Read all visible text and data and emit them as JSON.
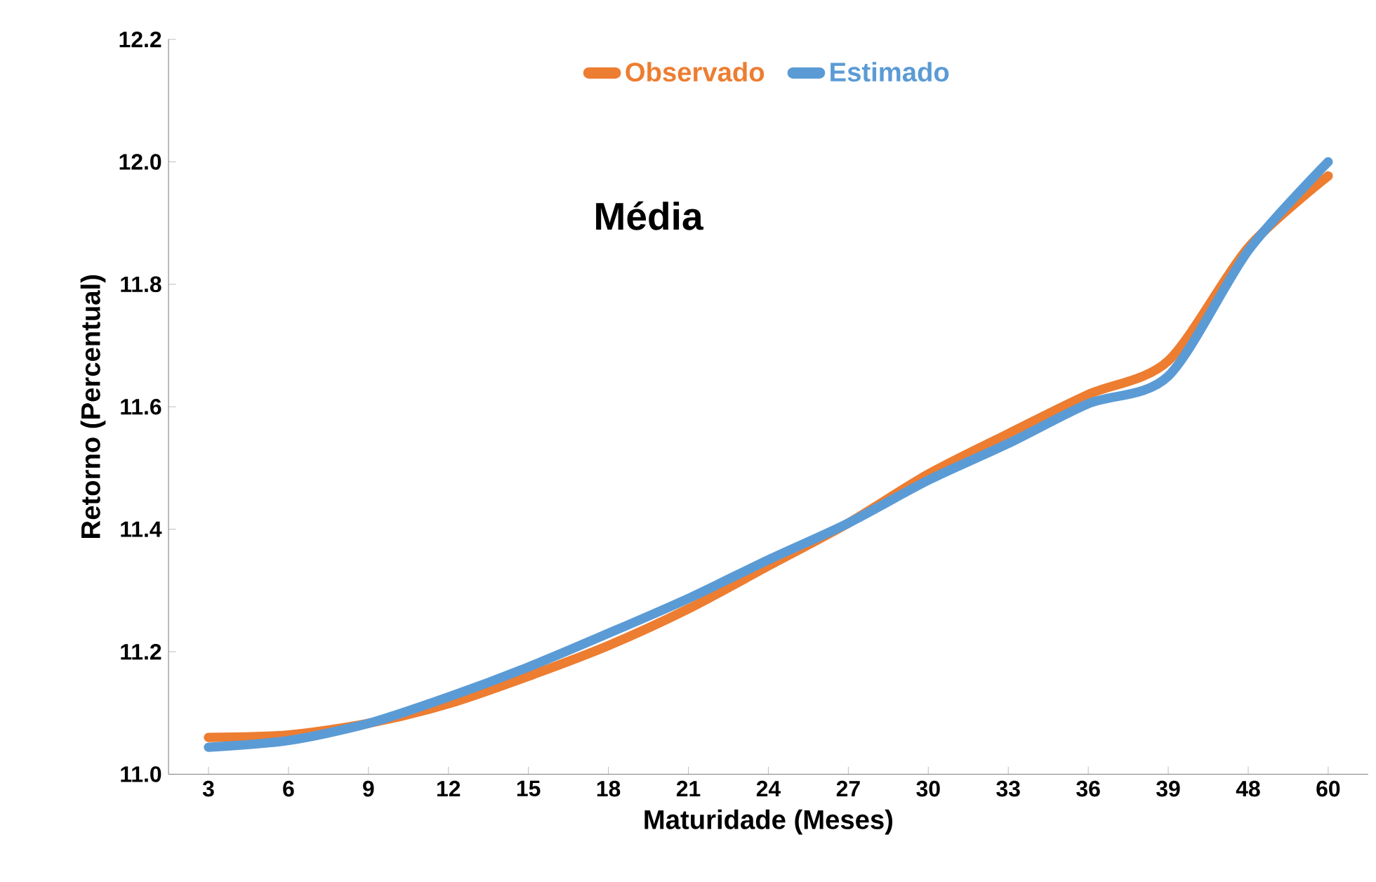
{
  "chart_data": {
    "type": "line",
    "xlabel": "Maturidade (Meses)",
    "ylabel": "Retorno (Percentual)",
    "annotations": [
      "Média"
    ],
    "categories": [
      "3",
      "6",
      "9",
      "12",
      "15",
      "18",
      "21",
      "24",
      "27",
      "30",
      "33",
      "36",
      "39",
      "48",
      "60"
    ],
    "series": [
      {
        "name": "Observado",
        "color": "#ed7d31",
        "values": [
          11.06,
          11.064,
          11.083,
          11.115,
          11.16,
          11.21,
          11.27,
          11.34,
          11.41,
          11.49,
          11.556,
          11.62,
          11.675,
          11.86,
          11.977
        ]
      },
      {
        "name": "Estimado",
        "color": "#5b9bd5",
        "values": [
          11.044,
          11.055,
          11.083,
          11.126,
          11.175,
          11.23,
          11.287,
          11.35,
          11.41,
          11.48,
          11.54,
          11.605,
          11.65,
          11.855,
          12.0
        ]
      }
    ],
    "ylim": [
      11.0,
      12.2
    ],
    "yticks": [
      {
        "value": 11.0,
        "label": "11.0"
      },
      {
        "value": 11.2,
        "label": "11.2"
      },
      {
        "value": 11.4,
        "label": "11.4"
      },
      {
        "value": 11.6,
        "label": "11.6"
      },
      {
        "value": 11.8,
        "label": "11.8"
      },
      {
        "value": 12.0,
        "label": "12.0"
      },
      {
        "value": 12.2,
        "label": "12.2"
      }
    ],
    "legend": "top",
    "grid": false,
    "marker": "none",
    "line_style": "solid"
  }
}
